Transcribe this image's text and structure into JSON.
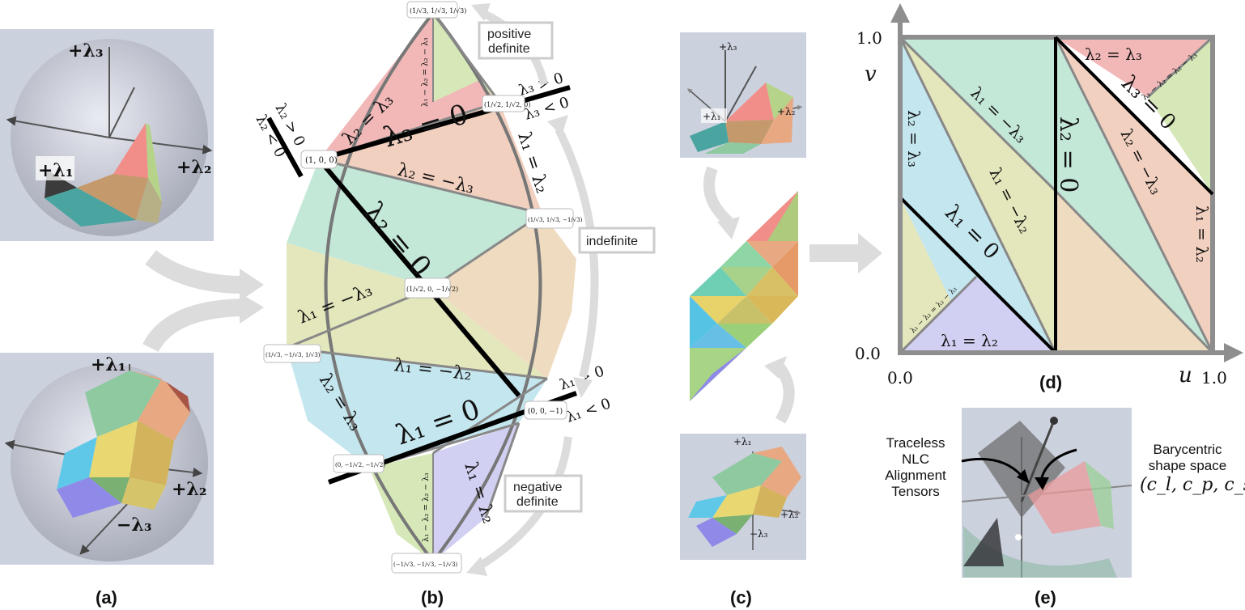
{
  "captions": {
    "a": "(a)",
    "b": "(b)",
    "c": "(c)",
    "d": "(d)",
    "e": "(e)"
  },
  "panel_a": {
    "top": {
      "axis_3": "+λ₃",
      "axis_1": "+λ₁",
      "axis_2": "+λ₂"
    },
    "bottom": {
      "axis_1": "+λ₁",
      "axis_2": "+λ₂",
      "axis_neg3": "−λ₃"
    }
  },
  "panel_b": {
    "arrow_labels": {
      "positive": [
        "positive",
        "definite"
      ],
      "indefinite": "indefinite",
      "negative": [
        "negative",
        "definite"
      ]
    },
    "points": {
      "top": "(1/√3, 1/√3, 1/√3)",
      "upper_right": "(1/√2, 1/√2, 0)",
      "left_node": "(1, 0, 0)",
      "right_mid": "(1/√3, 1/√3, −1/√3)",
      "center": "(1/√2, 0, −1/√2)",
      "left_low": "(1/√3, −1/√3, 1/√3)",
      "right_low": "(0, 0, −1)",
      "bottom_left": "(0, −1/√2, −1/√2)",
      "bottom": "(−1/√3, −1/√3, −1/√3)"
    },
    "region_labels": {
      "l2_eq_l3_top": "λ₂ = λ₃",
      "top_diag": "λ₁ − λ₂ = λ₂ − λ₃",
      "l3_zero": "λ₃ = 0",
      "l2_gt": "λ₂ > 0",
      "l2_lt": "λ₂ < 0",
      "l3_gt": "λ₃ > 0",
      "l3_lt": "λ₃ < 0",
      "l1_eq_l2_right": "λ₁ = λ₂",
      "l2_eq_neg_l3": "λ₂ = −λ₃",
      "l2_zero": "λ₂ = 0",
      "l1_eq_neg_l3": "λ₁ = −λ₃",
      "l1_eq_neg_l2": "λ₁ = −λ₂",
      "l2_eq_l3_left": "λ₂ = λ₃",
      "l1_zero": "λ₁ = 0",
      "l1_gt": "λ₁ > 0",
      "l1_lt": "λ₁ < 0",
      "bottom_diag": "λ₁ − λ₂ = λ₂ − λ₃",
      "l1_eq_l2_bottom": "λ₁ = λ₂"
    }
  },
  "panel_c": {
    "top": {
      "axis_3": "+λ₃",
      "axis_1": "+λ₁",
      "axis_2": "+λ₂"
    },
    "bottom": {
      "axis_1": "+λ₁",
      "axis_2": "+λ₂",
      "axis_neg3": "−λ₃"
    }
  },
  "panel_d": {
    "y_axis_label": "v",
    "x_axis_label": "u",
    "y_ticks": [
      "1.0",
      "0.0"
    ],
    "x_ticks": [
      "0.0",
      "1.0"
    ],
    "labels": {
      "l2_eq_l3_tr": "λ₂ = λ₃",
      "tr_diag": "λ₁ − λ₂ = λ₂ − λ₃",
      "l3_zero": "λ₃ = 0",
      "l2_eq_l3_left": "λ₂ = λ₃",
      "l1_eq_neg_l3": "λ₁ = −λ₃",
      "l2_zero": "λ₂ = 0",
      "l2_eq_neg_l3": "λ₂ = −λ₃",
      "l1_eq_neg_l2": "λ₁ = −λ₂",
      "l1_zero": "λ₁ = 0",
      "l1_eq_l2_right": "λ₁ = λ₂",
      "bl_diag": "λ₁ − λ₂ = λ₂ − λ₃",
      "l1_eq_l2_bottom": "λ₁ = λ₂"
    }
  },
  "panel_e": {
    "left_label": [
      "Traceless",
      "NLC",
      "Alignment",
      "Tensors"
    ],
    "right_label": [
      "Barycentric",
      "shape space"
    ],
    "right_formula": "(c_l, c_p, c_s)"
  },
  "colors": {
    "red": "#f2b8b8",
    "green": "#d6e8b8",
    "salmon": "#f2d0c0",
    "teal": "#c4e8d8",
    "tan": "#efdcc0",
    "olive": "#e4e6bc",
    "blue": "#c4e6ee",
    "purple": "#d2d0f2",
    "arrow": "#dcdcdc",
    "panel_bg": "#ccd1de"
  }
}
